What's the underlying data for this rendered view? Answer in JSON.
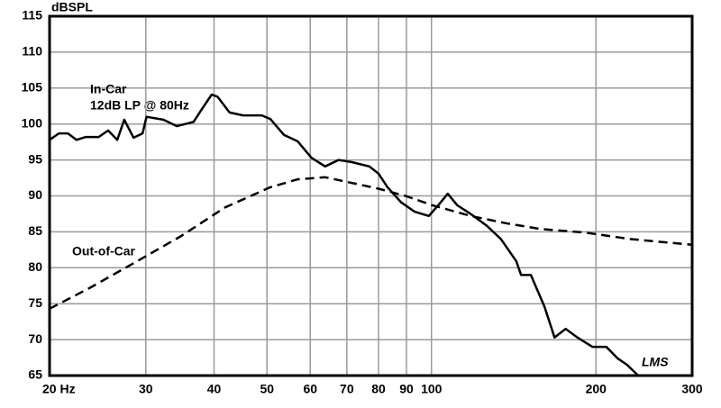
{
  "chart_data": {
    "type": "line",
    "y_label": "dBSPL",
    "x_scale": "log",
    "grid": true,
    "xlim": [
      20,
      300
    ],
    "ylim": [
      65,
      115
    ],
    "xticks": [
      {
        "value": 20,
        "label": "20 Hz"
      },
      30,
      40,
      50,
      60,
      70,
      80,
      90,
      100,
      200,
      300
    ],
    "yticks": [
      65,
      70,
      75,
      80,
      85,
      90,
      95,
      100,
      105,
      110,
      115
    ],
    "annotations": [
      "12dB LP @ 80Hz"
    ],
    "watermark": "LMS",
    "series": [
      {
        "name": "In-Car",
        "color": "#000000",
        "dash": false,
        "x": [
          20,
          20.8,
          21.6,
          22.4,
          23.3,
          24.6,
          25.6,
          26.6,
          27.4,
          28.5,
          29.6,
          30.1,
          32.3,
          34.2,
          36.7,
          38.1,
          39.6,
          40.6,
          42.7,
          45.2,
          48.9,
          50.7,
          53.7,
          56.9,
          60.3,
          63.9,
          67.6,
          71.5,
          77,
          80,
          83.1,
          88,
          93.2,
          98.9,
          102.9,
          107.1,
          111.5,
          118.4,
          126,
          134,
          143,
          145.9,
          152,
          161,
          168,
          176,
          185,
          197,
          209,
          219,
          228,
          239
        ],
        "values": [
          97.8,
          98.7,
          98.7,
          97.8,
          98.2,
          98.2,
          99.1,
          97.8,
          100.6,
          98.1,
          98.7,
          101,
          100.6,
          99.7,
          100.3,
          102.2,
          104.1,
          103.8,
          101.6,
          101.2,
          101.2,
          100.7,
          98.5,
          97.6,
          95.3,
          94.1,
          95,
          94.7,
          94.1,
          93.1,
          91.2,
          89.1,
          87.8,
          87.2,
          88.7,
          90.3,
          88.7,
          87.4,
          85.9,
          84,
          80.9,
          79,
          79,
          74.6,
          70.3,
          71.5,
          70.3,
          69,
          69,
          67.4,
          66.5,
          65
        ]
      },
      {
        "name": "Out-of-Car",
        "color": "#000000",
        "dash": true,
        "x": [
          20,
          23.7,
          28.6,
          34.8,
          41.9,
          50.7,
          56.9,
          63.9,
          71.5,
          80,
          89.6,
          100.4,
          118,
          136.8,
          158,
          191,
          231,
          300
        ],
        "values": [
          74.3,
          77.2,
          80.7,
          84.4,
          88.4,
          91.2,
          92.3,
          92.6,
          91.8,
          91,
          90,
          88.7,
          87.2,
          86.2,
          85.4,
          84.9,
          84,
          83.2
        ]
      }
    ]
  }
}
